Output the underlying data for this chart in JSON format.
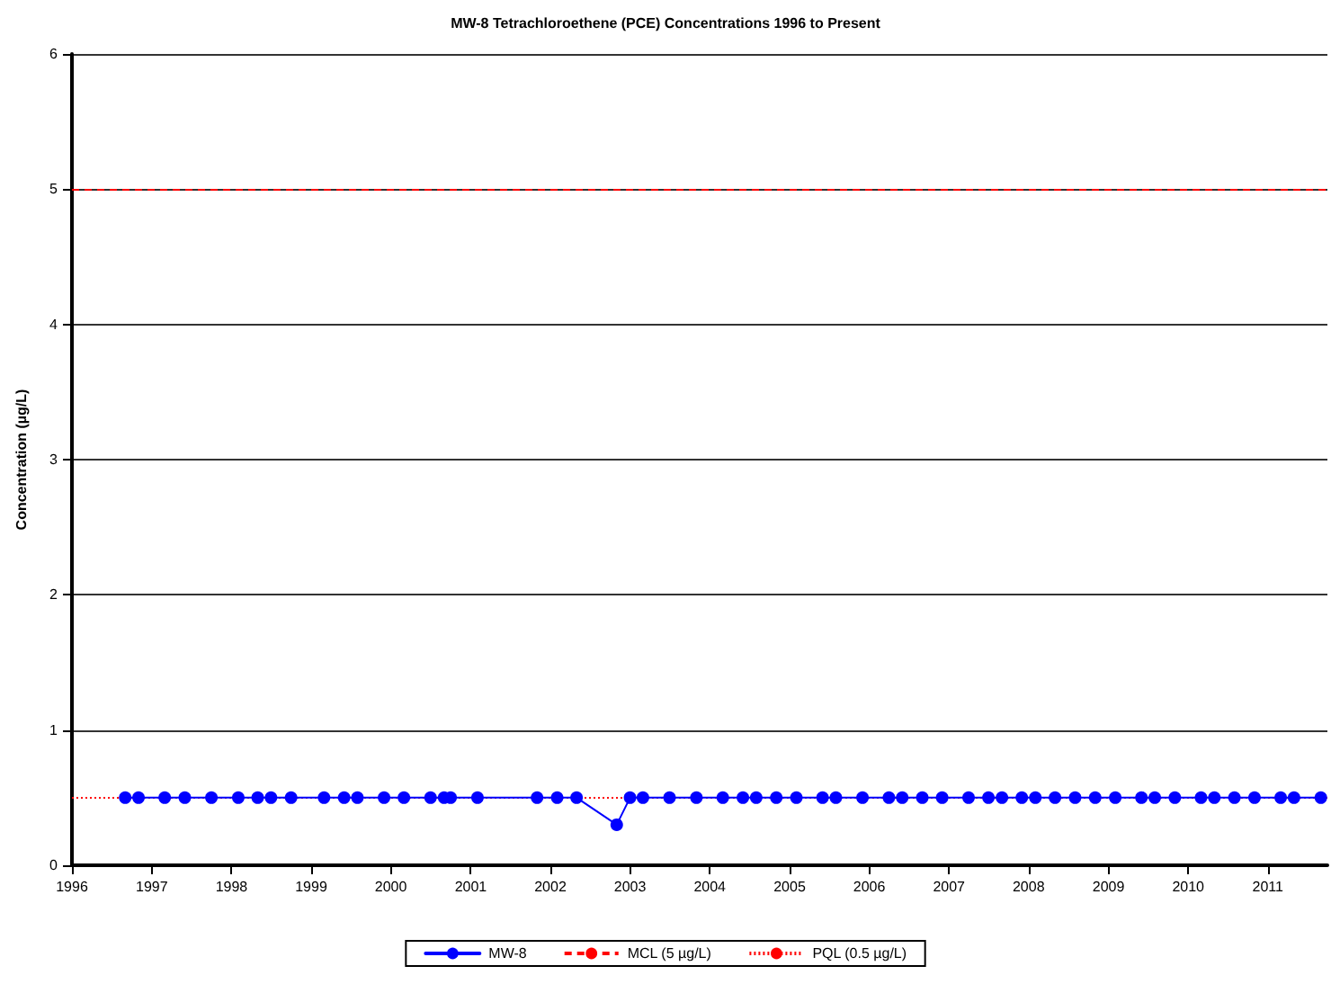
{
  "chart_data": {
    "type": "line",
    "title": "MW-8 Tetrachloroethene (PCE) Concentrations 1996 to Present",
    "ylabel": "Concentration (µg/L)",
    "x": [
      "1996-09",
      "1996-11",
      "1997-03",
      "1997-06",
      "1997-10",
      "1998-02",
      "1998-05",
      "1998-07",
      "1998-10",
      "1999-03",
      "1999-06",
      "1999-08",
      "1999-12",
      "2000-03",
      "2000-07",
      "2000-09",
      "2000-10",
      "2001-02",
      "2001-11",
      "2002-02",
      "2002-05",
      "2002-11",
      "2003-01",
      "2003-03",
      "2003-07",
      "2003-11",
      "2004-03",
      "2004-06",
      "2004-08",
      "2004-11",
      "2005-02",
      "2005-06",
      "2005-08",
      "2005-12",
      "2006-04",
      "2006-06",
      "2006-09",
      "2006-12",
      "2007-04",
      "2007-07",
      "2007-09",
      "2007-12",
      "2008-02",
      "2008-05",
      "2008-08",
      "2008-11",
      "2009-02",
      "2009-06",
      "2009-08",
      "2009-11",
      "2010-03",
      "2010-05",
      "2010-08",
      "2010-11",
      "2011-03",
      "2011-05",
      "2011-09"
    ],
    "series": [
      {
        "name": "MW-8",
        "color": "#0000ff",
        "values": [
          0.5,
          0.5,
          0.5,
          0.5,
          0.5,
          0.5,
          0.5,
          0.5,
          0.5,
          0.5,
          0.5,
          0.5,
          0.5,
          0.5,
          0.5,
          0.5,
          0.5,
          0.5,
          0.5,
          0.5,
          0.5,
          0.3,
          0.5,
          0.5,
          0.5,
          0.5,
          0.5,
          0.5,
          0.5,
          0.5,
          0.5,
          0.5,
          0.5,
          0.5,
          0.5,
          0.5,
          0.5,
          0.5,
          0.5,
          0.5,
          0.5,
          0.5,
          0.5,
          0.5,
          0.5,
          0.5,
          0.5,
          0.5,
          0.5,
          0.5,
          0.5,
          0.5,
          0.5,
          0.5,
          0.5,
          0.5,
          0.5
        ]
      }
    ],
    "ref_lines": [
      {
        "axis": "y",
        "value": 5,
        "label": "MCL (5 µg/L)",
        "color": "#ff0000",
        "line_style": "dashed"
      },
      {
        "axis": "y",
        "value": 0.5,
        "label": "PQL (0.5 µg/L)",
        "color": "#ff0000",
        "line_style": "dotted"
      }
    ],
    "xlim": [
      "1996",
      "2011-10"
    ],
    "xticks": [
      "1996",
      "1997",
      "1998",
      "1999",
      "2000",
      "2001",
      "2002",
      "2003",
      "2004",
      "2005",
      "2006",
      "2007",
      "2008",
      "2009",
      "2010",
      "2011"
    ],
    "ylim": [
      0,
      6
    ],
    "yticks": [
      0,
      1,
      2,
      3,
      4,
      5,
      6
    ],
    "grid": "y",
    "legend": "bottom",
    "marker": "circle",
    "line_style": "solid"
  }
}
